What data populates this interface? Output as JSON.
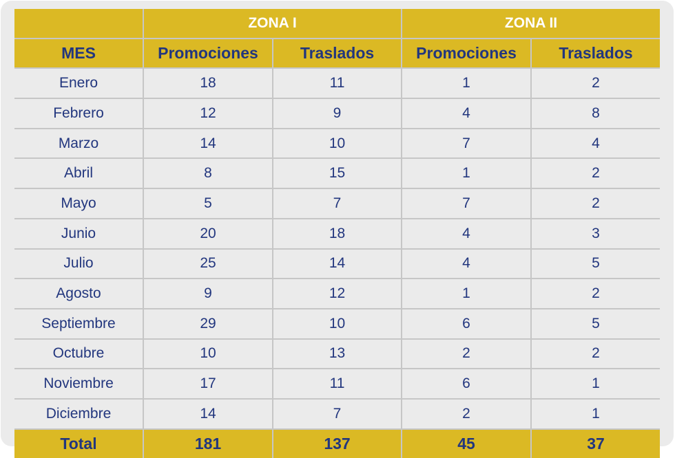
{
  "table": {
    "group_headers": [
      "",
      "ZONA I",
      "ZONA II"
    ],
    "column_headers": [
      "MES",
      "Promociones",
      "Traslados",
      "Promociones",
      "Traslados"
    ],
    "rows": [
      {
        "mes": "Enero",
        "z1_promociones": "18",
        "z1_traslados": "11",
        "z2_promociones": "1",
        "z2_traslados": "2"
      },
      {
        "mes": "Febrero",
        "z1_promociones": "12",
        "z1_traslados": "9",
        "z2_promociones": "4",
        "z2_traslados": "8"
      },
      {
        "mes": "Marzo",
        "z1_promociones": "14",
        "z1_traslados": "10",
        "z2_promociones": "7",
        "z2_traslados": "4"
      },
      {
        "mes": "Abril",
        "z1_promociones": "8",
        "z1_traslados": "15",
        "z2_promociones": "1",
        "z2_traslados": "2"
      },
      {
        "mes": "Mayo",
        "z1_promociones": "5",
        "z1_traslados": "7",
        "z2_promociones": "7",
        "z2_traslados": "2"
      },
      {
        "mes": "Junio",
        "z1_promociones": "20",
        "z1_traslados": "18",
        "z2_promociones": "4",
        "z2_traslados": "3"
      },
      {
        "mes": "Julio",
        "z1_promociones": "25",
        "z1_traslados": "14",
        "z2_promociones": "4",
        "z2_traslados": "5"
      },
      {
        "mes": "Agosto",
        "z1_promociones": "9",
        "z1_traslados": "12",
        "z2_promociones": "1",
        "z2_traslados": "2"
      },
      {
        "mes": "Septiembre",
        "z1_promociones": "29",
        "z1_traslados": "10",
        "z2_promociones": "6",
        "z2_traslados": "5"
      },
      {
        "mes": "Octubre",
        "z1_promociones": "10",
        "z1_traslados": "13",
        "z2_promociones": "2",
        "z2_traslados": "2"
      },
      {
        "mes": "Noviembre",
        "z1_promociones": "17",
        "z1_traslados": "11",
        "z2_promociones": "6",
        "z2_traslados": "1"
      },
      {
        "mes": "Diciembre",
        "z1_promociones": "14",
        "z1_traslados": "7",
        "z2_promociones": "2",
        "z2_traslados": "1"
      }
    ],
    "total": {
      "label": "Total",
      "z1_promociones": "181",
      "z1_traslados": "137",
      "z2_promociones": "45",
      "z2_traslados": "37"
    }
  },
  "colors": {
    "header_gold": "#dbb924",
    "text_navy": "#22367e",
    "background": "#ebebeb",
    "grid": "#c6c6c6"
  }
}
